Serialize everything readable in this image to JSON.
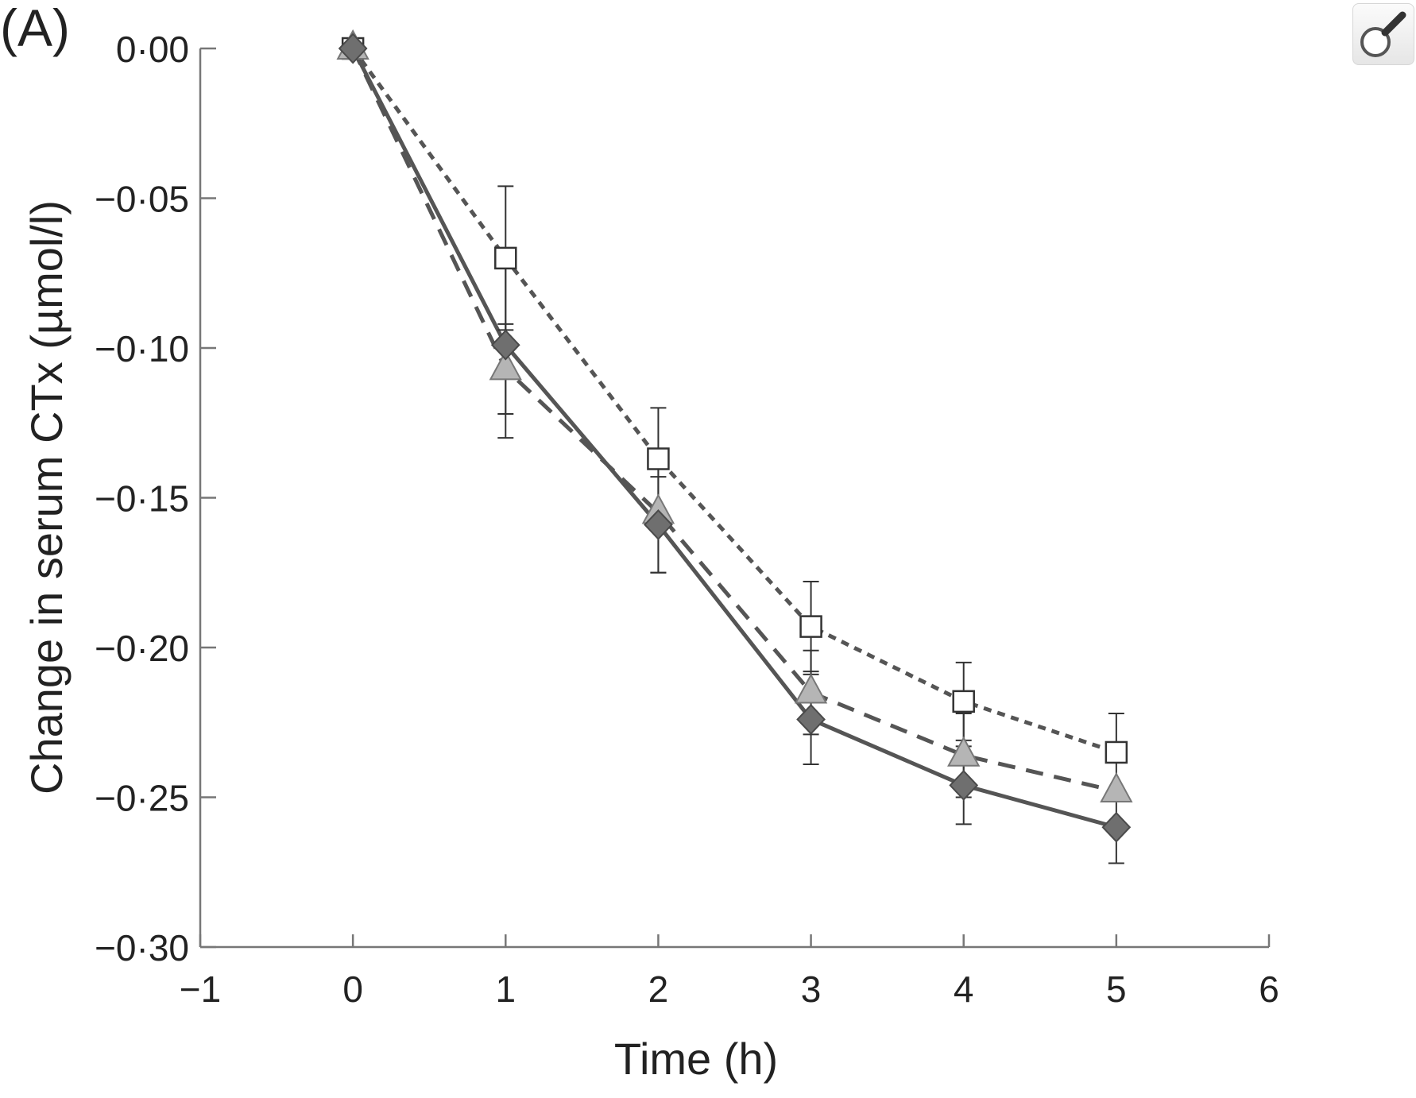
{
  "panel_label": "(A)",
  "toolbar": {
    "zoom_icon": "magnifier-icon"
  },
  "chart_data": {
    "type": "line",
    "title": "",
    "xlabel": "Time (h)",
    "ylabel": "Change in serum CTx (µmol/l)",
    "xlim": [
      -1,
      6
    ],
    "ylim": [
      -0.3,
      0.0
    ],
    "x_ticks": [
      -1,
      0,
      1,
      2,
      3,
      4,
      5,
      6
    ],
    "x_tick_labels": [
      "−1",
      "0",
      "1",
      "2",
      "3",
      "4",
      "5",
      "6"
    ],
    "y_ticks": [
      0.0,
      -0.05,
      -0.1,
      -0.15,
      -0.2,
      -0.25,
      -0.3
    ],
    "y_tick_labels": [
      "0·00",
      "−0·05",
      "−0·10",
      "−0·15",
      "−0·20",
      "−0·25",
      "−0·30"
    ],
    "grid": false,
    "legend": "none",
    "x": [
      0,
      1,
      2,
      3,
      4,
      5
    ],
    "series": [
      {
        "marker": "square-open",
        "line_style": "dotted",
        "color": "#555555",
        "values": [
          0.0,
          -0.07,
          -0.137,
          -0.193,
          -0.218,
          -0.235
        ],
        "error": [
          0.0,
          0.024,
          0.017,
          0.015,
          0.013,
          0.013
        ]
      },
      {
        "marker": "triangle-gray",
        "line_style": "dashed",
        "color": "#555555",
        "values": [
          0.0,
          -0.107,
          -0.155,
          -0.215,
          -0.236,
          -0.248
        ],
        "error": [
          0.0,
          0.015,
          0.02,
          0.014,
          0.014,
          0.0
        ]
      },
      {
        "marker": "diamond-dark",
        "line_style": "solid",
        "color": "#555555",
        "values": [
          0.0,
          -0.099,
          -0.159,
          -0.224,
          -0.246,
          -0.26
        ],
        "error": [
          0.0,
          0.031,
          0.016,
          0.015,
          0.013,
          0.012
        ]
      }
    ]
  }
}
